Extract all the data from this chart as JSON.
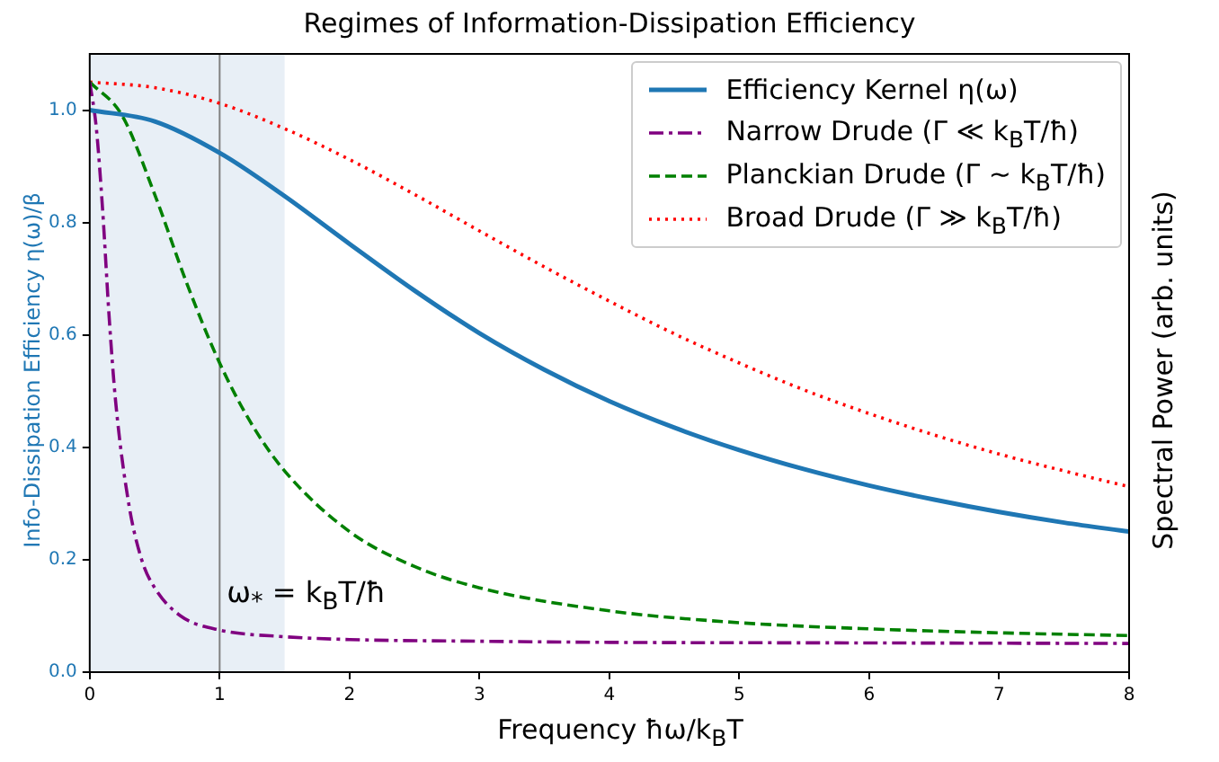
{
  "chart_data": {
    "type": "line",
    "title": "Regimes of Information-Dissipation Efficiency",
    "xlabel": "Frequency ħω/k$_{B}$T",
    "ylabel": "Info-Dissipation Efficiency η(ω)/β",
    "y2label": "Spectral Power (arb. units)",
    "xlim": [
      0,
      8
    ],
    "xticks": [
      0,
      1,
      2,
      3,
      4,
      5,
      6,
      7,
      8
    ],
    "ylim": [
      0,
      1.1
    ],
    "yticks": [
      {
        "value": 0,
        "label": "0.0"
      },
      {
        "value": 0.2,
        "label": "0.2"
      },
      {
        "value": 0.4,
        "label": "0.4"
      },
      {
        "value": 0.6,
        "label": "0.6"
      },
      {
        "value": 0.8,
        "label": "0.8"
      },
      {
        "value": 1,
        "label": "1.0"
      }
    ],
    "grid": false,
    "legend": "top right",
    "marker": "none",
    "series": [
      {
        "name": "Efficiency Kernel η(ω)",
        "color": "#1f77b4",
        "line_style": "solid",
        "x": [
          0,
          0.5,
          1,
          1.5,
          2,
          2.5,
          3,
          3.5,
          4,
          4.5,
          5,
          5.5,
          6,
          6.5,
          7,
          7.5,
          8
        ],
        "values": [
          1,
          0.98,
          0.924,
          0.847,
          0.762,
          0.679,
          0.603,
          0.538,
          0.482,
          0.435,
          0.395,
          0.361,
          0.332,
          0.307,
          0.285,
          0.266,
          0.25
        ]
      },
      {
        "name": "Narrow Drude (Γ ≪ k$_{B}$T/ħ)",
        "color": "#800080",
        "line_style": "dashdot",
        "x": [
          0,
          0.05,
          0.1,
          0.15,
          0.2,
          0.3,
          0.4,
          0.5,
          0.7,
          1,
          1.5,
          2,
          3,
          4,
          6,
          8
        ],
        "values": [
          1.05,
          0.97,
          0.82,
          0.63,
          0.48,
          0.3,
          0.2,
          0.15,
          0.1,
          0.075,
          0.063,
          0.058,
          0.055,
          0.053,
          0.052,
          0.051
        ]
      },
      {
        "name": "Planckian Drude (Γ ~ k$_{B}$T/ħ)",
        "color": "#008000",
        "line_style": "dashed",
        "x": [
          0,
          0.25,
          0.5,
          0.75,
          1,
          1.25,
          1.5,
          2,
          2.5,
          3,
          4,
          5,
          6,
          7,
          8
        ],
        "values": [
          1.05,
          0.99,
          0.85,
          0.69,
          0.55,
          0.44,
          0.358,
          0.25,
          0.188,
          0.15,
          0.109,
          0.088,
          0.077,
          0.07,
          0.065
        ]
      },
      {
        "name": "Broad Drude (Γ ≫ k$_{B}$T/ħ)",
        "color": "#ff0000",
        "line_style": "dotted",
        "x": [
          0,
          0.5,
          1,
          1.5,
          2,
          2.5,
          3,
          3.5,
          4,
          4.5,
          5,
          5.5,
          6,
          6.5,
          7,
          7.5,
          8
        ],
        "values": [
          1.05,
          1.04,
          1.012,
          0.967,
          0.912,
          0.85,
          0.785,
          0.721,
          0.66,
          0.602,
          0.55,
          0.502,
          0.46,
          0.422,
          0.388,
          0.358,
          0.33
        ]
      }
    ],
    "ref_lines": [
      {
        "axis": "x",
        "value": 1,
        "label": "ω$_{*}$ = k$_{B}$T/ħ",
        "color": "#808080"
      }
    ],
    "bands": [
      {
        "axis": "x",
        "from": 0,
        "to": 1.5,
        "color": "#e8eff6"
      }
    ]
  }
}
